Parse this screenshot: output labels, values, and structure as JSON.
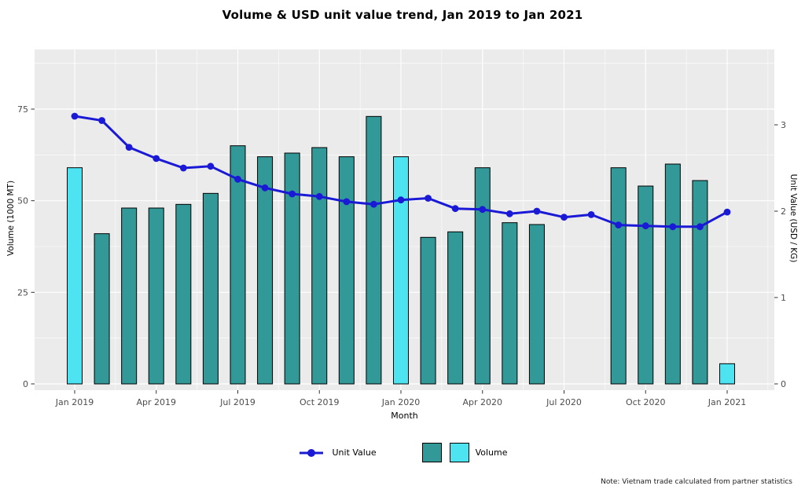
{
  "title": "Volume & USD unit value trend, Jan 2019 to Jan 2021",
  "axis_titles": {
    "x": "Month",
    "y_left": "Volume (1000 MT)",
    "y_right": "Unit Value (USD / KG)"
  },
  "legend": {
    "unit_value_label": "Unit Value",
    "volume_label": "Volume"
  },
  "note": "Note: Vietnam trade calculated from partner statistics",
  "chart_data": {
    "type": "bar+line",
    "categories": [
      "Jan 2019",
      "Feb 2019",
      "Mar 2019",
      "Apr 2019",
      "May 2019",
      "Jun 2019",
      "Jul 2019",
      "Aug 2019",
      "Sep 2019",
      "Oct 2019",
      "Nov 2019",
      "Dec 2019",
      "Jan 2020",
      "Feb 2020",
      "Mar 2020",
      "Apr 2020",
      "May 2020",
      "Jun 2020",
      "Jul 2020",
      "Aug 2020",
      "Sep 2020",
      "Oct 2020",
      "Nov 2020",
      "Dec 2020",
      "Jan 2021"
    ],
    "series": [
      {
        "name": "Volume",
        "type": "bar",
        "axis": "left",
        "unit": "1000 MT",
        "values": [
          59,
          41,
          48,
          48,
          49,
          52,
          65,
          62,
          63,
          64.5,
          62,
          73,
          62,
          40,
          41.5,
          59,
          44,
          43.5,
          null,
          null,
          59,
          54,
          60,
          55.5,
          5.5
        ],
        "highlight_indices": [
          0,
          12,
          24
        ]
      },
      {
        "name": "Unit Value",
        "type": "line",
        "axis": "right",
        "unit": "USD / KG",
        "values": [
          3.1,
          3.05,
          2.74,
          2.61,
          2.5,
          2.52,
          2.37,
          2.27,
          2.2,
          2.17,
          2.11,
          2.08,
          2.13,
          2.15,
          2.03,
          2.02,
          1.97,
          2.0,
          1.93,
          1.96,
          1.84,
          1.83,
          1.82,
          1.82,
          1.99
        ]
      }
    ],
    "x_major_tick_indices": [
      0,
      3,
      6,
      9,
      12,
      15,
      18,
      21,
      24
    ],
    "x_major_tick_labels": [
      "Jan 2019",
      "Apr 2019",
      "Jul 2019",
      "Oct 2019",
      "Jan 2020",
      "Apr 2020",
      "Jul 2020",
      "Oct 2020",
      "Jan 2021"
    ],
    "y_left": {
      "ticks": [
        0,
        25,
        50,
        75
      ],
      "minor": [
        12.5,
        37.5,
        62.5,
        87.5
      ],
      "range": [
        0,
        75
      ]
    },
    "y_right": {
      "ticks": [
        0,
        1,
        2,
        3
      ],
      "range": [
        0,
        3
      ]
    },
    "grid": true,
    "legend_position": "bottom",
    "colors": {
      "bar": "#339898",
      "bar_highlight": "#4DE3F0",
      "line": "#1A1AD6",
      "plot_bg": "#EBEBEB",
      "grid": "#FFFFFF",
      "tick_text": "#4D4D4D",
      "tick_mark": "#333333",
      "bar_border": "#000000"
    }
  }
}
